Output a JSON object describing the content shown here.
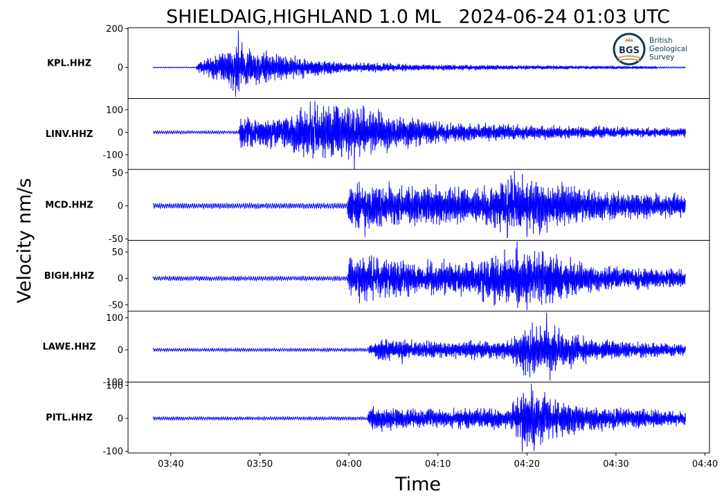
{
  "chart_data": {
    "type": "line",
    "title": "SHIELDAIG,HIGHLAND 1.0 ML   2024-06-24 01:03 UTC",
    "xlabel": "Time",
    "ylabel": "Velocity nm/s",
    "x_ticks": [
      "03:40",
      "03:50",
      "04:00",
      "04:10",
      "04:20",
      "04:30",
      "04:40"
    ],
    "x_tick_minutes": [
      0,
      10,
      20,
      30,
      40,
      50,
      60
    ],
    "xlim_minutes": [
      -4.8,
      60.5
    ],
    "data_range_minutes": [
      -2.0,
      57.8
    ],
    "line_color": "#0000ff",
    "grid": false,
    "legend": "none",
    "logo": {
      "name": "bgs-logo-icon",
      "badge": "BGS",
      "lines": [
        "British",
        "Geological",
        "Survey"
      ],
      "colors": {
        "ring": "#123a56",
        "gold": "#c9a45c"
      }
    },
    "series": [
      {
        "name": "KPL.HHZ",
        "ylim": [
          -160,
          205
        ],
        "y_ticks": [
          {
            "v": 200,
            "label": "200"
          },
          {
            "v": 0,
            "label": "0"
          }
        ],
        "noise": 3,
        "envelope_minutes": [
          [
            -2.0,
            3
          ],
          [
            2.8,
            3
          ],
          [
            3.2,
            20
          ],
          [
            5.5,
            55
          ],
          [
            7.5,
            75
          ],
          [
            10,
            60
          ],
          [
            14,
            35
          ],
          [
            20,
            18
          ],
          [
            30,
            10
          ],
          [
            45,
            6
          ],
          [
            57.8,
            4
          ]
        ],
        "peaks": [
          {
            "t": 7.6,
            "v": 190
          },
          {
            "t": 7.3,
            "v": -150
          },
          {
            "t": 8.0,
            "v": 130
          },
          {
            "t": 7.0,
            "v": -120
          }
        ]
      },
      {
        "name": "LINV.HHZ",
        "ylim": [
          -165,
          150
        ],
        "y_ticks": [
          {
            "v": 100,
            "label": "100"
          },
          {
            "v": 0,
            "label": "0"
          },
          {
            "v": -100,
            "label": "-100"
          }
        ],
        "noise": 8,
        "envelope_minutes": [
          [
            -2.0,
            8
          ],
          [
            7.6,
            8
          ],
          [
            7.8,
            45
          ],
          [
            12,
            45
          ],
          [
            16,
            80
          ],
          [
            20,
            80
          ],
          [
            22,
            70
          ],
          [
            26,
            45
          ],
          [
            32,
            28
          ],
          [
            45,
            18
          ],
          [
            57.8,
            14
          ]
        ],
        "peaks": [
          {
            "t": 16.2,
            "v": 140
          },
          {
            "t": 20.6,
            "v": -165
          },
          {
            "t": 18.6,
            "v": 115
          },
          {
            "t": 19.2,
            "v": -110
          }
        ]
      },
      {
        "name": "MCD.HHZ",
        "ylim": [
          -52,
          55
        ],
        "y_ticks": [
          {
            "v": 50,
            "label": "50"
          },
          {
            "v": 0,
            "label": "0"
          },
          {
            "v": -50,
            "label": "-50"
          }
        ],
        "noise": 5,
        "envelope_minutes": [
          [
            -2.0,
            5
          ],
          [
            19.8,
            5
          ],
          [
            20.2,
            25
          ],
          [
            26,
            20
          ],
          [
            36,
            18
          ],
          [
            38,
            30
          ],
          [
            43,
            25
          ],
          [
            48,
            14
          ],
          [
            57.8,
            12
          ]
        ],
        "peaks": [
          {
            "t": 38.6,
            "v": 53
          },
          {
            "t": 40.0,
            "v": -47
          },
          {
            "t": 21.8,
            "v": -47
          },
          {
            "t": 37.8,
            "v": -48
          }
        ]
      },
      {
        "name": "BIGH.HHZ",
        "ylim": [
          -62,
          72
        ],
        "y_ticks": [
          {
            "v": 50,
            "label": "50"
          },
          {
            "v": 0,
            "label": "0"
          },
          {
            "v": -50,
            "label": "-50"
          }
        ],
        "noise": 5,
        "envelope_minutes": [
          [
            -2.0,
            5
          ],
          [
            19.8,
            5
          ],
          [
            20.2,
            30
          ],
          [
            26,
            22
          ],
          [
            34,
            20
          ],
          [
            37,
            35
          ],
          [
            43,
            30
          ],
          [
            48,
            15
          ],
          [
            57.8,
            12
          ]
        ],
        "peaks": [
          {
            "t": 38.9,
            "v": 70
          },
          {
            "t": 40.0,
            "v": -60
          },
          {
            "t": 21.2,
            "v": -47
          },
          {
            "t": 37.5,
            "v": 55
          }
        ]
      },
      {
        "name": "LAWE.HHZ",
        "ylim": [
          -100,
          120
        ],
        "y_ticks": [
          {
            "v": 100,
            "label": "100"
          },
          {
            "v": 0,
            "label": "0"
          },
          {
            "v": -100,
            "label": "-100"
          }
        ],
        "noise": 6,
        "envelope_minutes": [
          [
            -2.0,
            6
          ],
          [
            22,
            6
          ],
          [
            23.5,
            22
          ],
          [
            30,
            18
          ],
          [
            38,
            18
          ],
          [
            40,
            60
          ],
          [
            44,
            40
          ],
          [
            48,
            20
          ],
          [
            57.8,
            12
          ]
        ],
        "peaks": [
          {
            "t": 42.2,
            "v": 115
          },
          {
            "t": 42.6,
            "v": -95
          },
          {
            "t": 41.5,
            "v": 75
          },
          {
            "t": 26.0,
            "v": -45
          }
        ]
      },
      {
        "name": "PITL.HHZ",
        "ylim": [
          -105,
          110
        ],
        "y_ticks": [
          {
            "v": 100,
            "label": "100"
          },
          {
            "v": 0,
            "label": "0"
          },
          {
            "v": -100,
            "label": "-100"
          }
        ],
        "noise": 6,
        "envelope_minutes": [
          [
            -2.0,
            6
          ],
          [
            22,
            6
          ],
          [
            22.6,
            25
          ],
          [
            30,
            18
          ],
          [
            38,
            22
          ],
          [
            39.5,
            60
          ],
          [
            43,
            40
          ],
          [
            47,
            25
          ],
          [
            57.8,
            14
          ]
        ],
        "peaks": [
          {
            "t": 40.5,
            "v": 105
          },
          {
            "t": 40.8,
            "v": -100
          },
          {
            "t": 42.0,
            "v": 80
          },
          {
            "t": 39.8,
            "v": -70
          }
        ]
      }
    ]
  }
}
